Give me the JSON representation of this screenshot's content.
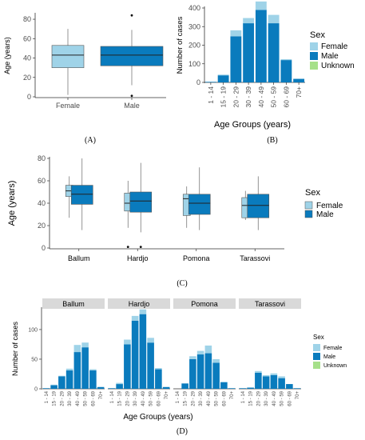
{
  "colors": {
    "female": "#9fd3e8",
    "male": "#0a7bbd",
    "unknown": "#a6e08a",
    "strip": "#d9d9d9",
    "axis": "#333333",
    "tick_text": "#4d4d4d"
  },
  "captions": {
    "A": "(A)",
    "B": "(B)",
    "C": "(C)",
    "D": "(D)"
  },
  "chart_data": [
    {
      "id": "A",
      "type": "boxplot",
      "ylabel": "Age (years)",
      "ylim": [
        0,
        85
      ],
      "yticks": [
        0,
        20,
        40,
        60,
        80
      ],
      "categories": [
        "Female",
        "Male"
      ],
      "boxes": [
        {
          "name": "Female",
          "whisker_low": 2,
          "q1": 30,
          "median": 43,
          "q3": 53,
          "whisker_high": 70,
          "outliers": []
        },
        {
          "name": "Male",
          "whisker_low": 12,
          "q1": 32,
          "median": 43,
          "q3": 52,
          "whisker_high": 69,
          "outliers": [
            1,
            84
          ]
        }
      ]
    },
    {
      "id": "B",
      "type": "bar",
      "xlabel": "Age Groups (years)",
      "ylabel": "Number of cases",
      "ylim": [
        0,
        400
      ],
      "yticks": [
        0,
        100,
        200,
        300,
        400
      ],
      "categories": [
        "1 - 14",
        "15 - 19",
        "20 - 29",
        "30 - 39",
        "40 - 49",
        "50 - 59",
        "60 - 69",
        "70+"
      ],
      "legend_title": "Sex",
      "legend_position": "right",
      "series": [
        {
          "name": "Female",
          "values": [
            1,
            4,
            32,
            28,
            45,
            45,
            5,
            1
          ]
        },
        {
          "name": "Male",
          "values": [
            3,
            38,
            248,
            318,
            390,
            318,
            120,
            19
          ]
        },
        {
          "name": "Unknown",
          "values": [
            0,
            0,
            0,
            0,
            0,
            0,
            0,
            0
          ]
        }
      ]
    },
    {
      "id": "C",
      "type": "boxplot",
      "ylabel": "Age (years)",
      "ylim": [
        0,
        80
      ],
      "yticks": [
        0,
        20,
        40,
        60,
        80
      ],
      "categories": [
        "Ballum",
        "Hardjo",
        "Pomona",
        "Tarassovi"
      ],
      "legend_title": "Sex",
      "legend_entries": [
        "Female",
        "Male"
      ],
      "legend_position": "right",
      "boxes": [
        {
          "group": "Ballum",
          "sex": "Female",
          "whisker_low": 27,
          "q1": 46,
          "median": 51,
          "q3": 56,
          "whisker_high": 64,
          "outliers": []
        },
        {
          "group": "Ballum",
          "sex": "Male",
          "whisker_low": 16,
          "q1": 39,
          "median": 48,
          "q3": 56,
          "whisker_high": 80,
          "outliers": []
        },
        {
          "group": "Hardjo",
          "sex": "Female",
          "whisker_low": 18,
          "q1": 33,
          "median": 40,
          "q3": 49,
          "whisker_high": 60,
          "outliers": [
            1
          ]
        },
        {
          "group": "Hardjo",
          "sex": "Male",
          "whisker_low": 14,
          "q1": 32,
          "median": 42,
          "q3": 50,
          "whisker_high": 76,
          "outliers": [
            1
          ]
        },
        {
          "group": "Pomona",
          "sex": "Female",
          "whisker_low": 18,
          "q1": 29,
          "median": 44,
          "q3": 48,
          "whisker_high": 55,
          "outliers": []
        },
        {
          "group": "Pomona",
          "sex": "Male",
          "whisker_low": 16,
          "q1": 30,
          "median": 40,
          "q3": 48,
          "whisker_high": 72,
          "outliers": []
        },
        {
          "group": "Tarassovi",
          "sex": "Female",
          "whisker_low": 25,
          "q1": 27,
          "median": 38,
          "q3": 45,
          "whisker_high": 51,
          "outliers": []
        },
        {
          "group": "Tarassovi",
          "sex": "Male",
          "whisker_low": 16,
          "q1": 27,
          "median": 38,
          "q3": 48,
          "whisker_high": 64,
          "outliers": []
        }
      ]
    },
    {
      "id": "D",
      "type": "bar",
      "faceted": true,
      "xlabel": "Age Groups (years)",
      "ylabel": "Number of cases",
      "ylim": [
        0,
        135
      ],
      "yticks": [
        0,
        50,
        100
      ],
      "categories": [
        "1 - 14",
        "15 - 19",
        "20 - 29",
        "30 - 39",
        "40 - 49",
        "50 - 59",
        "60 - 69",
        "70+"
      ],
      "legend_title": "Sex",
      "legend_position": "right",
      "series_names": [
        "Female",
        "Male",
        "Unknown"
      ],
      "facets": [
        {
          "name": "Ballum",
          "female": [
            0,
            1,
            1,
            3,
            12,
            8,
            2,
            0
          ],
          "male": [
            1,
            6,
            21,
            31,
            62,
            70,
            31,
            3
          ]
        },
        {
          "name": "Hardjo",
          "female": [
            0,
            2,
            8,
            8,
            8,
            8,
            2,
            0
          ],
          "male": [
            1,
            8,
            75,
            115,
            126,
            78,
            33,
            3
          ]
        },
        {
          "name": "Pomona",
          "female": [
            0,
            0,
            5,
            6,
            13,
            6,
            1,
            0
          ],
          "male": [
            0,
            9,
            50,
            58,
            60,
            44,
            11,
            1
          ]
        },
        {
          "name": "Tarassovi",
          "female": [
            0,
            0,
            3,
            2,
            3,
            3,
            0,
            0
          ],
          "male": [
            1,
            2,
            27,
            21,
            23,
            18,
            8,
            1
          ]
        }
      ]
    }
  ]
}
